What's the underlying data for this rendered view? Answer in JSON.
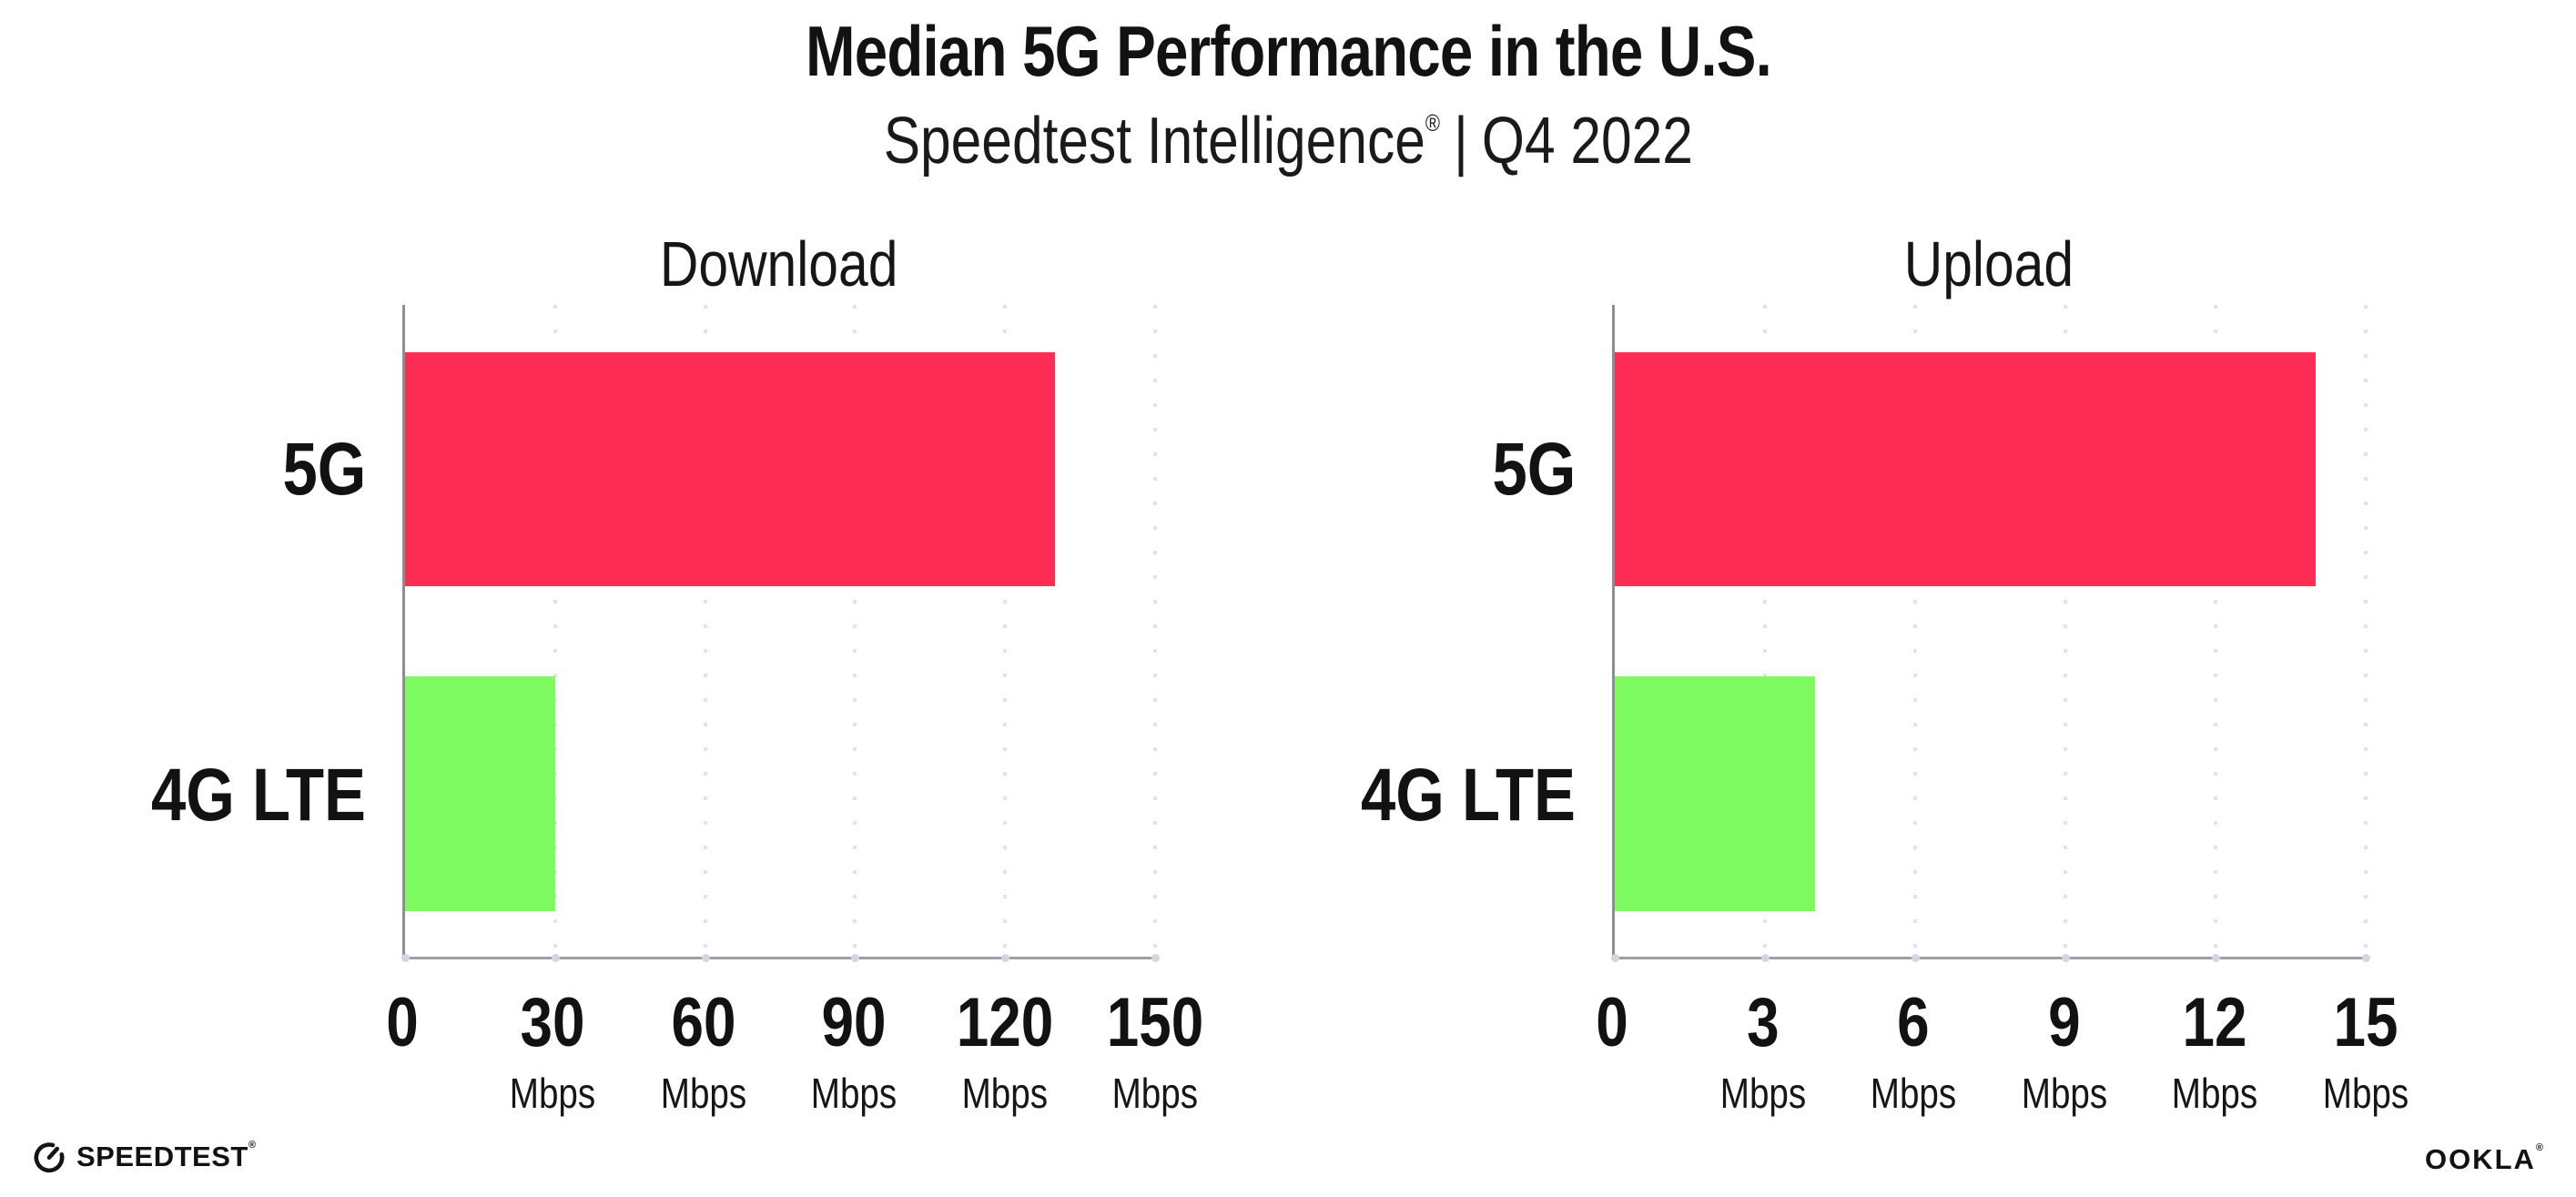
{
  "title": "Median 5G Performance in the U.S.",
  "subtitle": {
    "brand": "Speedtest Intelligence",
    "registered_mark": "®",
    "divider": "|",
    "period": "Q4 2022"
  },
  "footer": {
    "speedtest_label": "SPEEDTEST",
    "speedtest_mark": "®",
    "ookla_label": "OOKLA",
    "ookla_mark": "®"
  },
  "colors": {
    "bar_5g": "#FD2D55",
    "bar_4g_lte": "#7EFA61",
    "y_axis": "#8D8D93",
    "x_axis": "#9F9FA6",
    "gridline": "#E2E2EE",
    "axis_tick_dot": "#D4D4E2",
    "text": "#121212"
  },
  "chart_data": [
    {
      "type": "bar",
      "orientation": "horizontal",
      "title": "Download",
      "categories": [
        "5G",
        "4G LTE"
      ],
      "values": [
        130,
        30
      ],
      "unit": "Mbps",
      "xlabel": "",
      "ylabel": "",
      "xlim": [
        0,
        150
      ],
      "xticks": [
        0,
        30,
        60,
        90,
        120,
        150
      ],
      "bar_colors": [
        "#FD2D55",
        "#7EFA61"
      ],
      "grid": "dotted-vertical",
      "legend": "none"
    },
    {
      "type": "bar",
      "orientation": "horizontal",
      "title": "Upload",
      "categories": [
        "5G",
        "4G LTE"
      ],
      "values": [
        14,
        4
      ],
      "unit": "Mbps",
      "xlabel": "",
      "ylabel": "",
      "xlim": [
        0,
        15
      ],
      "xticks": [
        0,
        3,
        6,
        9,
        12,
        15
      ],
      "bar_colors": [
        "#FD2D55",
        "#7EFA61"
      ],
      "grid": "dotted-vertical",
      "legend": "none"
    }
  ]
}
